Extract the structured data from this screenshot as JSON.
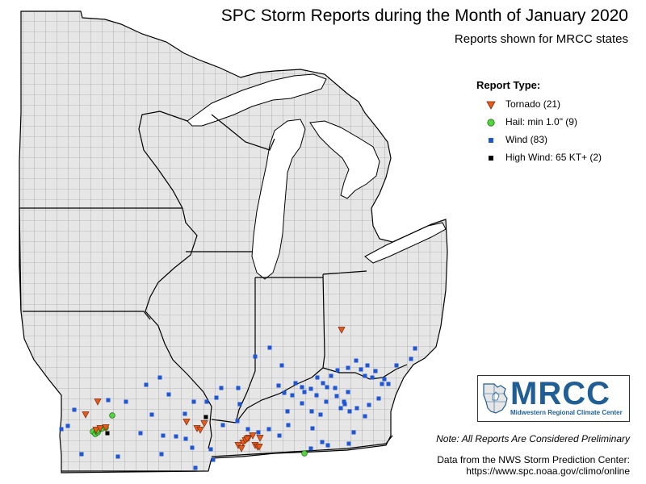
{
  "title": "SPC Storm Reports during the Month of January 2020",
  "subtitle": "Reports shown for MRCC states",
  "legend": {
    "title": "Report Type:",
    "items": [
      {
        "type": "tornado",
        "label": "Tornado (21)",
        "color": "#e8591c",
        "symbol": "triangle-down"
      },
      {
        "type": "hail",
        "label": "Hail: min 1.0\" (9)",
        "color": "#55d43f",
        "symbol": "circle"
      },
      {
        "type": "wind",
        "label": "Wind (83)",
        "color": "#1f56d6",
        "symbol": "square"
      },
      {
        "type": "high_wind",
        "label": "High Wind: 65 KT+ (2)",
        "color": "#000000",
        "symbol": "square"
      }
    ]
  },
  "logo": {
    "name": "MRCC",
    "text": "Midwestern Regional Climate Center",
    "color": "#1f5f95"
  },
  "note": "Note: All Reports Are Considered Preliminary",
  "source_line1": "Data from the NWS Storm Prediction Center:",
  "source_line2": "https://www.spc.noaa.gov/climo/online",
  "map": {
    "land_color": "#e6e6e6",
    "water_color": "#ffffff",
    "state_border_color": "#000000",
    "county_border_color": "#7a7a7a"
  }
}
